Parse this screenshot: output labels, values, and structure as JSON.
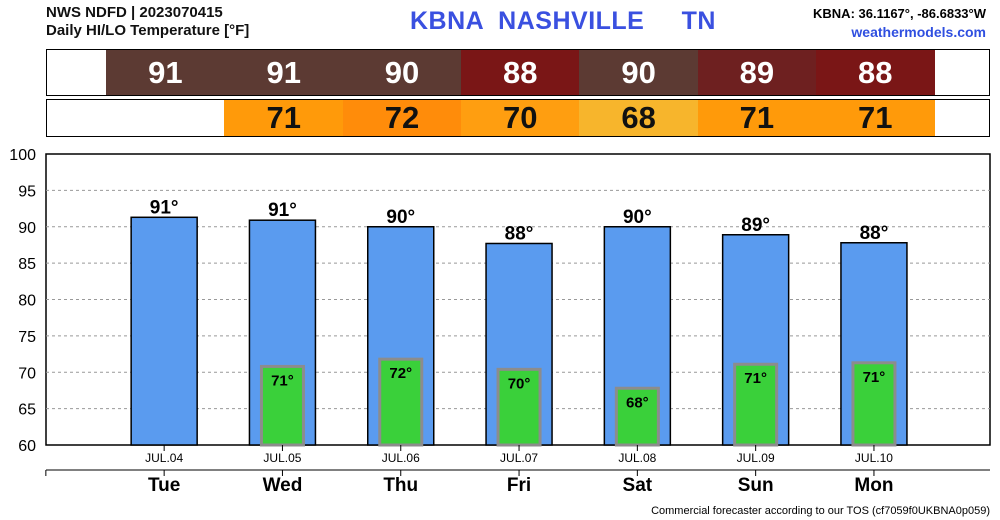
{
  "header": {
    "line1": "NWS NDFD | 2023070415",
    "line2": "Daily HI/LO Temperature [°F]",
    "station": "KBNA  NASHVILLE     TN",
    "coords": "KBNA: 36.1167°, -86.6833°W",
    "site": "weathermodels.com"
  },
  "strips": {
    "hi": [
      {
        "value": "91",
        "color": "#5c3a33"
      },
      {
        "value": "91",
        "color": "#5c3a33"
      },
      {
        "value": "90",
        "color": "#5c3a33"
      },
      {
        "value": "88",
        "color": "#7a1616"
      },
      {
        "value": "90",
        "color": "#5c3a33"
      },
      {
        "value": "89",
        "color": "#6e2020"
      },
      {
        "value": "88",
        "color": "#7a1616"
      }
    ],
    "lo": [
      {
        "value": "",
        "color": "#ffffff"
      },
      {
        "value": "71",
        "color": "#ff9a0a"
      },
      {
        "value": "72",
        "color": "#ff8c0a"
      },
      {
        "value": "70",
        "color": "#ff9e10"
      },
      {
        "value": "68",
        "color": "#f7b52c"
      },
      {
        "value": "71",
        "color": "#ff9a0a"
      },
      {
        "value": "71",
        "color": "#ff9a0a"
      }
    ]
  },
  "chart_data": {
    "type": "bar",
    "title": "Daily HI/LO Temperature [°F]",
    "xlabel": "",
    "ylabel": "",
    "ylim": [
      60,
      100
    ],
    "yticks": [
      60,
      65,
      70,
      75,
      80,
      85,
      90,
      95,
      100
    ],
    "grid": true,
    "dates": [
      "JUL.04",
      "JUL.05",
      "JUL.06",
      "JUL.07",
      "JUL.08",
      "JUL.09",
      "JUL.10"
    ],
    "categories": [
      "Tue",
      "Wed",
      "Thu",
      "Fri",
      "Sat",
      "Sun",
      "Mon"
    ],
    "series": [
      {
        "values": [
          91.3,
          90.9,
          90.0,
          87.7,
          90.0,
          88.9,
          87.8
        ],
        "labels": [
          "91°",
          "91°",
          "90°",
          "88°",
          "90°",
          "89°",
          "88°"
        ],
        "color": "#5a9bef"
      },
      {
        "values": [
          null,
          70.8,
          71.8,
          70.4,
          67.8,
          71.1,
          71.3
        ],
        "labels": [
          "",
          "71°",
          "72°",
          "70°",
          "68°",
          "71°",
          "71°"
        ],
        "color": "#3ad03a"
      }
    ]
  },
  "footer": "Commercial forecaster according to our TOS (cf7059f0UKBNA0p059)"
}
